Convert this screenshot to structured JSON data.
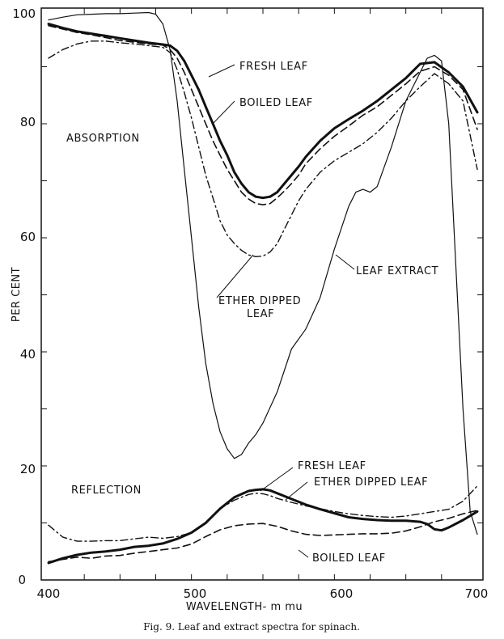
{
  "chart_data": {
    "type": "line",
    "xlabel": "WAVELENGTH- m mu",
    "ylabel": "PER CENT",
    "xlim": [
      400,
      700
    ],
    "ylim": [
      0,
      100
    ],
    "x_ticks": [
      400,
      500,
      600,
      700
    ],
    "y_ticks": [
      0,
      20,
      40,
      60,
      80,
      100
    ],
    "caption": "Fig. 9.   Leaf and extract spectra for spinach.",
    "regions": {
      "absorption": "ABSORPTION",
      "reflection": "REFLECTION"
    },
    "series": [
      {
        "name": "Absorption - Fresh leaf",
        "style": "solid-thick",
        "x": [
          400,
          410,
          420,
          430,
          440,
          450,
          460,
          470,
          480,
          485,
          490,
          495,
          500,
          505,
          510,
          515,
          520,
          525,
          530,
          535,
          540,
          545,
          550,
          555,
          560,
          565,
          570,
          575,
          580,
          590,
          600,
          610,
          620,
          630,
          640,
          650,
          660,
          670,
          680,
          690,
          700
        ],
        "y": [
          97.5,
          96.8,
          96.2,
          95.8,
          95.4,
          95,
          94.6,
          94.2,
          93.9,
          93.7,
          92.8,
          91,
          88.5,
          86,
          83,
          80,
          77,
          74.5,
          71.5,
          69.5,
          68,
          67.2,
          67,
          67.2,
          68,
          69.5,
          71,
          72.5,
          74.2,
          77,
          79.2,
          80.8,
          82.3,
          84,
          86,
          88,
          90.5,
          90.8,
          89,
          86.5,
          82
        ]
      },
      {
        "name": "Absorption - Boiled leaf",
        "style": "dashed",
        "x": [
          400,
          410,
          420,
          430,
          440,
          450,
          460,
          470,
          480,
          485,
          490,
          495,
          500,
          505,
          510,
          515,
          520,
          525,
          530,
          535,
          540,
          545,
          550,
          555,
          560,
          565,
          570,
          575,
          580,
          590,
          600,
          610,
          620,
          630,
          640,
          650,
          660,
          670,
          680,
          690,
          700
        ],
        "y": [
          97.2,
          96.6,
          96,
          95.6,
          95.1,
          94.6,
          94.3,
          94,
          93.8,
          93,
          91.5,
          89,
          86,
          83,
          80,
          77,
          74.5,
          72,
          70,
          68,
          66.8,
          66,
          65.8,
          66,
          67,
          68.2,
          69.5,
          71,
          73,
          75.6,
          77.8,
          79.6,
          81.5,
          83,
          85,
          87,
          89.2,
          90,
          88.5,
          86,
          79
        ]
      },
      {
        "name": "Absorption - Ether dipped leaf",
        "style": "dash-dot",
        "x": [
          400,
          410,
          420,
          430,
          440,
          450,
          460,
          470,
          480,
          485,
          490,
          495,
          500,
          505,
          510,
          515,
          520,
          525,
          530,
          535,
          540,
          545,
          550,
          555,
          560,
          565,
          570,
          575,
          580,
          590,
          600,
          610,
          620,
          630,
          640,
          650,
          660,
          670,
          680,
          690,
          700
        ],
        "y": [
          91.5,
          93,
          94,
          94.5,
          94.5,
          94.2,
          94,
          93.7,
          93.4,
          92.5,
          89.5,
          85.5,
          81,
          76,
          71,
          67,
          63,
          60.5,
          59,
          57.8,
          57,
          56.7,
          56.8,
          57.5,
          59,
          61.5,
          64,
          66.5,
          68.5,
          71.5,
          73.5,
          75,
          76.5,
          78.5,
          81,
          84,
          86.5,
          88.8,
          87,
          84,
          72
        ]
      },
      {
        "name": "Absorption - Leaf extract",
        "style": "solid-thin",
        "x": [
          400,
          410,
          420,
          430,
          440,
          450,
          460,
          470,
          475,
          480,
          485,
          490,
          495,
          500,
          505,
          510,
          515,
          520,
          525,
          530,
          535,
          540,
          545,
          550,
          560,
          570,
          580,
          590,
          600,
          610,
          615,
          620,
          625,
          630,
          640,
          650,
          660,
          665,
          670,
          675,
          680,
          685,
          690,
          695,
          700
        ],
        "y": [
          98.2,
          98.7,
          99.1,
          99.2,
          99.3,
          99.3,
          99.4,
          99.5,
          99.2,
          97.5,
          93,
          84,
          72,
          60,
          48,
          38,
          31,
          26,
          23,
          21.3,
          22,
          24,
          25.5,
          27.5,
          33,
          40.5,
          44,
          49.5,
          58,
          65.5,
          68,
          68.5,
          68,
          69,
          76,
          84,
          89,
          91.5,
          92,
          91,
          80,
          55,
          30,
          12,
          8
        ]
      },
      {
        "name": "Reflection - Fresh leaf",
        "style": "solid-thick",
        "x": [
          400,
          410,
          420,
          430,
          440,
          450,
          460,
          470,
          480,
          490,
          500,
          510,
          520,
          530,
          540,
          545,
          550,
          555,
          560,
          570,
          580,
          590,
          600,
          610,
          620,
          630,
          640,
          650,
          660,
          665,
          670,
          675,
          680,
          690,
          700
        ],
        "y": [
          3,
          3.8,
          4.4,
          4.8,
          5,
          5.3,
          5.8,
          6,
          6.4,
          7.2,
          8.3,
          10,
          12.5,
          14.5,
          15.6,
          15.8,
          15.9,
          15.7,
          15.2,
          14.2,
          13.2,
          12.4,
          11.7,
          11,
          10.7,
          10.5,
          10.4,
          10.4,
          10.2,
          9.8,
          8.9,
          8.7,
          9.2,
          10.5,
          12
        ]
      },
      {
        "name": "Reflection - Ether dipped leaf",
        "style": "dash-dot",
        "x": [
          400,
          410,
          420,
          430,
          440,
          450,
          460,
          470,
          480,
          490,
          500,
          510,
          520,
          530,
          540,
          545,
          550,
          555,
          560,
          570,
          580,
          590,
          600,
          610,
          620,
          630,
          640,
          650,
          660,
          670,
          680,
          690,
          700
        ],
        "y": [
          9.6,
          7.5,
          6.8,
          6.8,
          6.9,
          6.9,
          7.2,
          7.5,
          7.3,
          7.6,
          8.3,
          10,
          12.5,
          14,
          15,
          15.2,
          15.1,
          14.8,
          14.3,
          13.6,
          13,
          12.5,
          12,
          11.6,
          11.3,
          11.1,
          11,
          11.2,
          11.6,
          12,
          12.4,
          13.8,
          16.5
        ]
      },
      {
        "name": "Reflection - Boiled leaf",
        "style": "dashed",
        "x": [
          400,
          410,
          420,
          430,
          440,
          450,
          460,
          470,
          480,
          490,
          500,
          510,
          520,
          530,
          540,
          550,
          560,
          570,
          580,
          590,
          600,
          610,
          620,
          630,
          640,
          650,
          660,
          670,
          680,
          690,
          700
        ],
        "y": [
          3.2,
          3.6,
          4,
          3.8,
          4.2,
          4.3,
          4.7,
          5,
          5.3,
          5.6,
          6.3,
          7.6,
          8.8,
          9.5,
          9.8,
          9.9,
          9.4,
          8.6,
          8,
          7.8,
          7.9,
          8,
          8.1,
          8.1,
          8.2,
          8.6,
          9.3,
          10.2,
          10.8,
          11.6,
          12.2
        ]
      }
    ],
    "annotations": {
      "fresh_leaf": "FRESH LEAF",
      "boiled_leaf": "BOILED LEAF",
      "ether_dipped_line1": "ETHER DIPPED",
      "ether_dipped_line2": "LEAF",
      "leaf_extract": "LEAF EXTRACT",
      "r_fresh_leaf": "FRESH LEAF",
      "r_ether_dipped_leaf": "ETHER DIPPED LEAF",
      "r_boiled_leaf": "BOILED LEAF"
    }
  }
}
